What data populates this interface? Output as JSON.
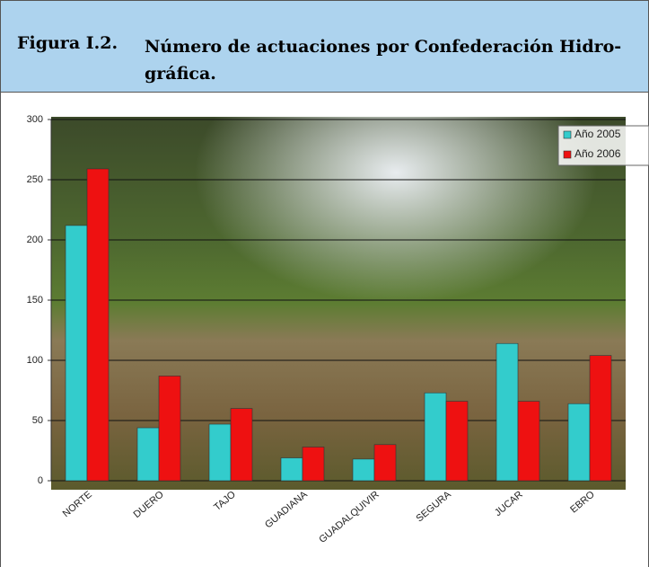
{
  "header": {
    "figure": "Figura I.2.",
    "title_lines": [
      "Número de actuaciones por Confederación Hidro-",
      "gráfica."
    ]
  },
  "chart_data": {
    "type": "bar",
    "categories": [
      "NORTE",
      "DUERO",
      "TAJO",
      "GUADIANA",
      "GUADALQUIVIR",
      "SEGURA",
      "JUCAR",
      "EBRO"
    ],
    "series": [
      {
        "name": "Año 2005",
        "color": "#33cccc",
        "values": [
          212,
          44,
          47,
          19,
          18,
          73,
          114,
          64
        ]
      },
      {
        "name": "Año 2006",
        "color": "#ee1111",
        "values": [
          259,
          87,
          60,
          28,
          30,
          66,
          66,
          104
        ]
      }
    ],
    "ylim": [
      0,
      300
    ],
    "yticks": [
      0,
      50,
      100,
      150,
      200,
      250,
      300
    ],
    "grid": true,
    "legend": "top-right"
  }
}
